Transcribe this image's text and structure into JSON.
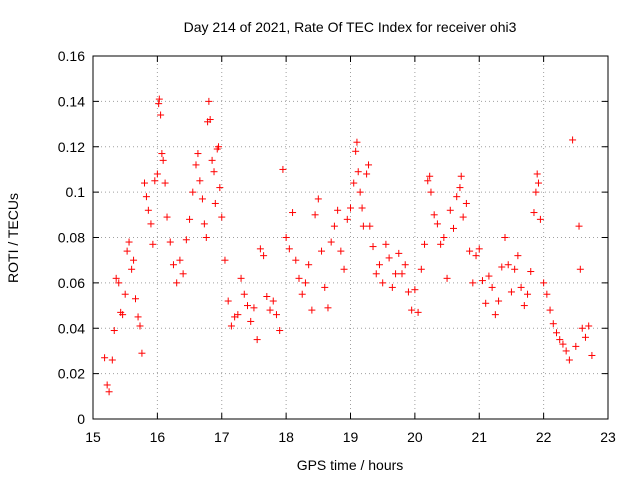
{
  "chart_data": {
    "type": "scatter",
    "title": "Day 214 of 2021, Rate Of TEC Index for receiver ohi3",
    "xlabel": "GPS time / hours",
    "ylabel": "ROTI / TECUs",
    "xlim": [
      15,
      23
    ],
    "ylim": [
      0,
      0.16
    ],
    "xticks": [
      "15",
      "16",
      "17",
      "18",
      "19",
      "20",
      "21",
      "22",
      "23"
    ],
    "yticks": [
      "0",
      "0.02",
      "0.04",
      "0.06",
      "0.08",
      "0.1",
      "0.12",
      "0.14",
      "0.16"
    ],
    "grid": true,
    "marker": "+",
    "color": "#ff0000",
    "series": [
      {
        "name": "ROTI",
        "points": [
          [
            15.18,
            0.027
          ],
          [
            15.22,
            0.015
          ],
          [
            15.25,
            0.012
          ],
          [
            15.3,
            0.026
          ],
          [
            15.33,
            0.039
          ],
          [
            15.36,
            0.062
          ],
          [
            15.4,
            0.06
          ],
          [
            15.43,
            0.047
          ],
          [
            15.46,
            0.046
          ],
          [
            15.5,
            0.055
          ],
          [
            15.53,
            0.074
          ],
          [
            15.56,
            0.078
          ],
          [
            15.6,
            0.066
          ],
          [
            15.63,
            0.07
          ],
          [
            15.66,
            0.053
          ],
          [
            15.7,
            0.045
          ],
          [
            15.73,
            0.041
          ],
          [
            15.76,
            0.029
          ],
          [
            15.8,
            0.104
          ],
          [
            15.83,
            0.098
          ],
          [
            15.86,
            0.092
          ],
          [
            15.9,
            0.086
          ],
          [
            15.93,
            0.077
          ],
          [
            15.96,
            0.105
          ],
          [
            16.0,
            0.108
          ],
          [
            16.02,
            0.139
          ],
          [
            16.03,
            0.141
          ],
          [
            16.05,
            0.134
          ],
          [
            16.07,
            0.117
          ],
          [
            16.09,
            0.114
          ],
          [
            16.12,
            0.104
          ],
          [
            16.15,
            0.089
          ],
          [
            16.2,
            0.078
          ],
          [
            16.25,
            0.068
          ],
          [
            16.3,
            0.06
          ],
          [
            16.35,
            0.07
          ],
          [
            16.4,
            0.064
          ],
          [
            16.45,
            0.079
          ],
          [
            16.5,
            0.088
          ],
          [
            16.55,
            0.1
          ],
          [
            16.6,
            0.112
          ],
          [
            16.63,
            0.117
          ],
          [
            16.66,
            0.105
          ],
          [
            16.7,
            0.097
          ],
          [
            16.73,
            0.086
          ],
          [
            16.76,
            0.08
          ],
          [
            16.78,
            0.131
          ],
          [
            16.8,
            0.14
          ],
          [
            16.82,
            0.132
          ],
          [
            16.85,
            0.114
          ],
          [
            16.88,
            0.109
          ],
          [
            16.9,
            0.095
          ],
          [
            16.93,
            0.119
          ],
          [
            16.95,
            0.12
          ],
          [
            16.97,
            0.102
          ],
          [
            17.0,
            0.089
          ],
          [
            17.05,
            0.07
          ],
          [
            17.1,
            0.052
          ],
          [
            17.15,
            0.041
          ],
          [
            17.2,
            0.045
          ],
          [
            17.25,
            0.046
          ],
          [
            17.3,
            0.062
          ],
          [
            17.35,
            0.055
          ],
          [
            17.4,
            0.05
          ],
          [
            17.45,
            0.043
          ],
          [
            17.5,
            0.049
          ],
          [
            17.55,
            0.035
          ],
          [
            17.6,
            0.075
          ],
          [
            17.65,
            0.072
          ],
          [
            17.7,
            0.054
          ],
          [
            17.75,
            0.048
          ],
          [
            17.8,
            0.052
          ],
          [
            17.85,
            0.046
          ],
          [
            17.9,
            0.039
          ],
          [
            17.95,
            0.11
          ],
          [
            18.0,
            0.08
          ],
          [
            18.05,
            0.075
          ],
          [
            18.1,
            0.091
          ],
          [
            18.15,
            0.07
          ],
          [
            18.2,
            0.062
          ],
          [
            18.25,
            0.055
          ],
          [
            18.3,
            0.06
          ],
          [
            18.35,
            0.068
          ],
          [
            18.4,
            0.048
          ],
          [
            18.45,
            0.09
          ],
          [
            18.5,
            0.097
          ],
          [
            18.55,
            0.074
          ],
          [
            18.6,
            0.058
          ],
          [
            18.65,
            0.049
          ],
          [
            18.7,
            0.078
          ],
          [
            18.75,
            0.085
          ],
          [
            18.8,
            0.092
          ],
          [
            18.85,
            0.074
          ],
          [
            18.9,
            0.066
          ],
          [
            18.95,
            0.088
          ],
          [
            19.0,
            0.093
          ],
          [
            19.05,
            0.104
          ],
          [
            19.08,
            0.118
          ],
          [
            19.1,
            0.122
          ],
          [
            19.12,
            0.109
          ],
          [
            19.15,
            0.1
          ],
          [
            19.18,
            0.093
          ],
          [
            19.2,
            0.085
          ],
          [
            19.25,
            0.108
          ],
          [
            19.28,
            0.112
          ],
          [
            19.3,
            0.085
          ],
          [
            19.35,
            0.076
          ],
          [
            19.4,
            0.064
          ],
          [
            19.45,
            0.068
          ],
          [
            19.5,
            0.06
          ],
          [
            19.55,
            0.077
          ],
          [
            19.6,
            0.071
          ],
          [
            19.65,
            0.058
          ],
          [
            19.7,
            0.064
          ],
          [
            19.75,
            0.073
          ],
          [
            19.8,
            0.064
          ],
          [
            19.85,
            0.068
          ],
          [
            19.9,
            0.056
          ],
          [
            19.95,
            0.048
          ],
          [
            20.0,
            0.057
          ],
          [
            20.05,
            0.047
          ],
          [
            20.1,
            0.066
          ],
          [
            20.15,
            0.077
          ],
          [
            20.2,
            0.105
          ],
          [
            20.23,
            0.107
          ],
          [
            20.25,
            0.1
          ],
          [
            20.3,
            0.09
          ],
          [
            20.35,
            0.086
          ],
          [
            20.4,
            0.077
          ],
          [
            20.45,
            0.08
          ],
          [
            20.5,
            0.062
          ],
          [
            20.55,
            0.092
          ],
          [
            20.6,
            0.084
          ],
          [
            20.65,
            0.098
          ],
          [
            20.7,
            0.102
          ],
          [
            20.72,
            0.107
          ],
          [
            20.75,
            0.089
          ],
          [
            20.8,
            0.095
          ],
          [
            20.85,
            0.074
          ],
          [
            20.9,
            0.06
          ],
          [
            20.95,
            0.072
          ],
          [
            21.0,
            0.075
          ],
          [
            21.05,
            0.061
          ],
          [
            21.1,
            0.051
          ],
          [
            21.15,
            0.063
          ],
          [
            21.2,
            0.058
          ],
          [
            21.25,
            0.046
          ],
          [
            21.3,
            0.052
          ],
          [
            21.35,
            0.067
          ],
          [
            21.4,
            0.08
          ],
          [
            21.45,
            0.068
          ],
          [
            21.5,
            0.056
          ],
          [
            21.55,
            0.066
          ],
          [
            21.6,
            0.072
          ],
          [
            21.65,
            0.058
          ],
          [
            21.7,
            0.05
          ],
          [
            21.75,
            0.055
          ],
          [
            21.8,
            0.065
          ],
          [
            21.85,
            0.091
          ],
          [
            21.88,
            0.1
          ],
          [
            21.9,
            0.108
          ],
          [
            21.92,
            0.104
          ],
          [
            21.95,
            0.088
          ],
          [
            22.0,
            0.06
          ],
          [
            22.05,
            0.055
          ],
          [
            22.1,
            0.048
          ],
          [
            22.15,
            0.042
          ],
          [
            22.2,
            0.038
          ],
          [
            22.25,
            0.035
          ],
          [
            22.3,
            0.033
          ],
          [
            22.35,
            0.03
          ],
          [
            22.4,
            0.026
          ],
          [
            22.45,
            0.123
          ],
          [
            22.5,
            0.032
          ],
          [
            22.55,
            0.085
          ],
          [
            22.57,
            0.066
          ],
          [
            22.6,
            0.04
          ],
          [
            22.65,
            0.036
          ],
          [
            22.7,
            0.041
          ],
          [
            22.75,
            0.028
          ]
        ]
      }
    ]
  }
}
